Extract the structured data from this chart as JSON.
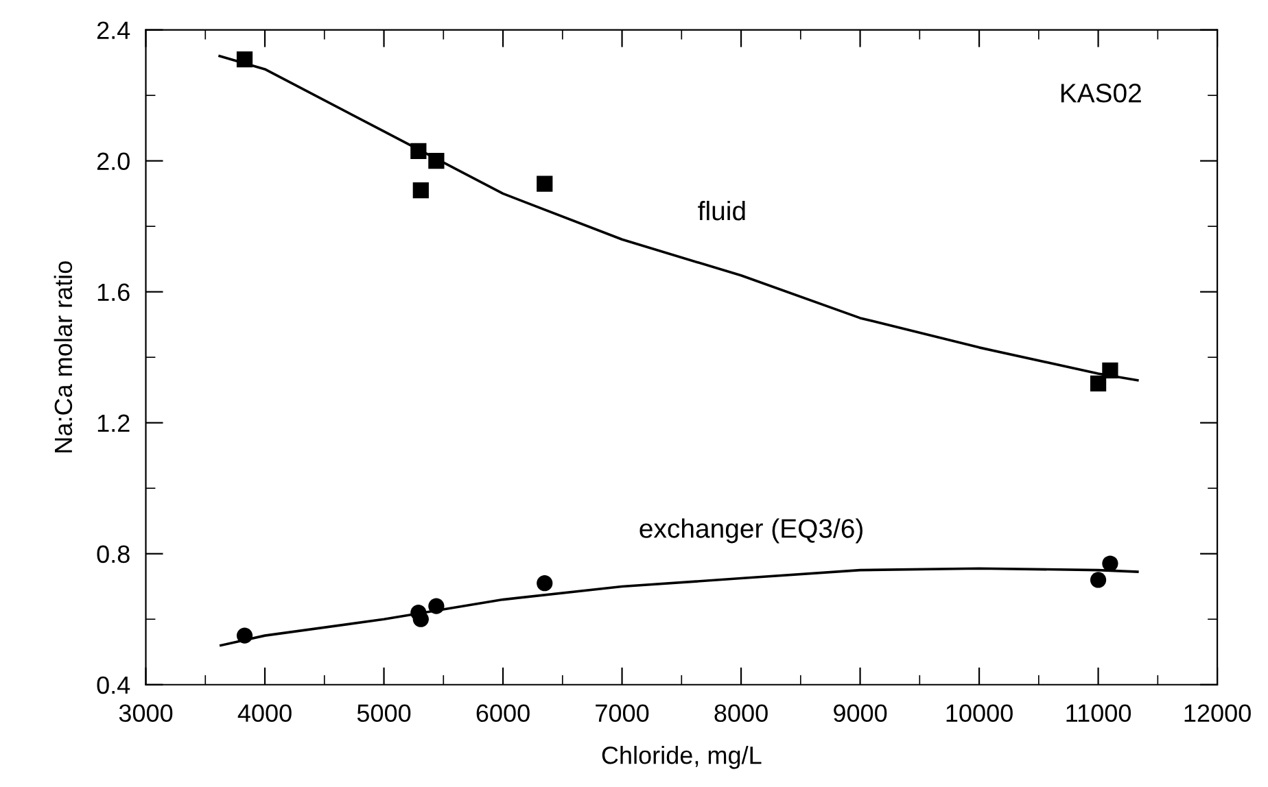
{
  "chart_data": {
    "type": "scatter",
    "xlabel": "Chloride, mg/L",
    "ylabel": "Na:Ca molar ratio",
    "xlim": [
      3000,
      12000
    ],
    "ylim": [
      0.4,
      2.4
    ],
    "xticks": [
      3000,
      4000,
      5000,
      6000,
      7000,
      8000,
      9000,
      10000,
      11000,
      12000
    ],
    "yticks": [
      0.4,
      0.8,
      1.2,
      1.6,
      {
        "value": 2,
        "label": "2.0"
      },
      2.4
    ],
    "grid": false,
    "legend": false,
    "series": [
      {
        "marker": "square",
        "color": "#000000",
        "x": [
          3830,
          5290,
          5440,
          5310,
          6350,
          11000,
          11100
        ],
        "values": [
          2.31,
          2.03,
          2.0,
          1.91,
          1.93,
          1.32,
          1.36
        ]
      },
      {
        "marker": "circle",
        "color": "#000000",
        "x": [
          3830,
          5290,
          5310,
          5440,
          6350,
          11000,
          11100
        ],
        "values": [
          0.55,
          0.62,
          0.6,
          0.64,
          0.71,
          0.72,
          0.77
        ]
      },
      {
        "type": "line",
        "marker": "none",
        "line_style": "solid",
        "color": "#000000",
        "x": [
          3620,
          4000,
          5000,
          6000,
          7000,
          8000,
          9000,
          10000,
          11000,
          11330
        ],
        "values": [
          2.32,
          2.28,
          2.09,
          1.9,
          1.76,
          1.65,
          1.52,
          1.43,
          1.35,
          1.33
        ]
      },
      {
        "type": "line",
        "marker": "none",
        "line_style": "solid",
        "color": "#000000",
        "x": [
          3630,
          4000,
          5000,
          6000,
          7000,
          8000,
          9000,
          10000,
          11000,
          11330
        ],
        "values": [
          0.52,
          0.55,
          0.6,
          0.66,
          0.7,
          0.725,
          0.75,
          0.755,
          0.75,
          0.745
        ]
      }
    ],
    "annotations": [
      "fluid",
      "exchanger (EQ3/6)",
      "KAS02"
    ]
  }
}
